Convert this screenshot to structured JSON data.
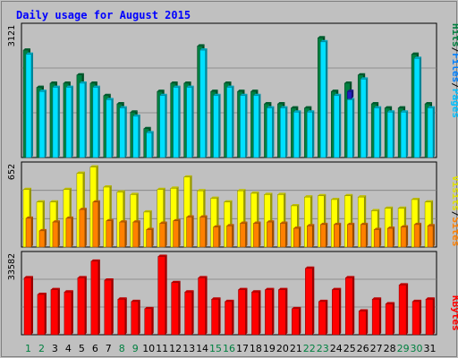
{
  "title": "Daily usage for August 2015",
  "legend": {
    "pages": "Pages",
    "files": "Files",
    "hits": "Hits",
    "sites": "Sites",
    "visits": "Visits",
    "kbytes": "KBytes",
    "separator": "/"
  },
  "colors": {
    "background": "#c0c0c0",
    "plot_bg": "#c0c0c0",
    "title": "#0000ff",
    "hits": "#008040",
    "files": "#00e0ff",
    "pages": "#00c0ff",
    "pages_highlight": "#2020c0",
    "sites": "#ff8000",
    "visits": "#ffff00",
    "kbytes": "#ff0000",
    "weekend_label": "#008040",
    "weekday_label": "#000000",
    "grid": "#808080"
  },
  "chart_data": [
    {
      "type": "bar",
      "name": "hits-files-pages",
      "categories": [
        "1",
        "2",
        "3",
        "4",
        "5",
        "6",
        "7",
        "8",
        "9",
        "10",
        "11",
        "12",
        "13",
        "14",
        "15",
        "16",
        "17",
        "18",
        "19",
        "20",
        "21",
        "22",
        "23",
        "24",
        "25",
        "26",
        "27",
        "28",
        "29",
        "30",
        "31"
      ],
      "ymax_label": "3121",
      "ylim": [
        0,
        3121
      ],
      "series": [
        {
          "name": "Hits",
          "values": [
            2600,
            1700,
            1800,
            1800,
            2000,
            1800,
            1500,
            1300,
            1100,
            700,
            1600,
            1800,
            1800,
            2700,
            1600,
            1800,
            1600,
            1600,
            1300,
            1300,
            1200,
            1200,
            2900,
            1600,
            1800,
            2000,
            1300,
            1200,
            1200,
            2500,
            1300
          ]
        },
        {
          "name": "Files",
          "values": [
            2500,
            1600,
            1700,
            1700,
            1800,
            1700,
            1400,
            1200,
            1000,
            600,
            1500,
            1700,
            1700,
            2600,
            1500,
            1700,
            1500,
            1500,
            1200,
            1200,
            1100,
            1100,
            2800,
            1500,
            1400,
            1900,
            1200,
            1100,
            1100,
            2400,
            1200
          ]
        },
        {
          "name": "Pages",
          "values": [
            0,
            0,
            0,
            0,
            0,
            0,
            0,
            0,
            0,
            0,
            0,
            0,
            0,
            0,
            0,
            0,
            0,
            0,
            0,
            0,
            0,
            0,
            0,
            0,
            1600,
            0,
            0,
            0,
            0,
            0,
            0
          ]
        }
      ]
    },
    {
      "type": "bar",
      "name": "visits-sites",
      "categories": [
        "1",
        "2",
        "3",
        "4",
        "5",
        "6",
        "7",
        "8",
        "9",
        "10",
        "11",
        "12",
        "13",
        "14",
        "15",
        "16",
        "17",
        "18",
        "19",
        "20",
        "21",
        "22",
        "23",
        "24",
        "25",
        "26",
        "27",
        "28",
        "29",
        "30",
        "31"
      ],
      "ymax_label": "652",
      "ylim": [
        0,
        652
      ],
      "series": [
        {
          "name": "Visits",
          "values": [
            460,
            360,
            360,
            460,
            590,
            640,
            480,
            440,
            420,
            280,
            460,
            470,
            560,
            450,
            390,
            360,
            450,
            430,
            420,
            420,
            330,
            400,
            410,
            380,
            410,
            400,
            290,
            310,
            310,
            380,
            360
          ]
        },
        {
          "name": "Sites",
          "values": [
            230,
            130,
            200,
            230,
            300,
            360,
            210,
            200,
            200,
            140,
            190,
            210,
            240,
            240,
            160,
            170,
            190,
            190,
            200,
            190,
            150,
            170,
            180,
            180,
            180,
            180,
            140,
            150,
            160,
            180,
            170
          ]
        }
      ]
    },
    {
      "type": "bar",
      "name": "kbytes",
      "categories": [
        "1",
        "2",
        "3",
        "4",
        "5",
        "6",
        "7",
        "8",
        "9",
        "10",
        "11",
        "12",
        "13",
        "14",
        "15",
        "16",
        "17",
        "18",
        "19",
        "20",
        "21",
        "22",
        "23",
        "24",
        "25",
        "26",
        "27",
        "28",
        "29",
        "30",
        "31"
      ],
      "ymax_label": "33582",
      "ylim": [
        0,
        33582
      ],
      "series": [
        {
          "name": "KBytes",
          "values": [
            24000,
            17000,
            19000,
            18000,
            24000,
            31000,
            23000,
            15000,
            14000,
            11000,
            33000,
            22000,
            18000,
            24000,
            15000,
            14000,
            19000,
            18000,
            19000,
            19000,
            11000,
            28000,
            14000,
            19000,
            24000,
            10000,
            15000,
            13000,
            21000,
            14000,
            15000
          ]
        }
      ]
    }
  ],
  "weekends": [
    "1",
    "2",
    "8",
    "9",
    "15",
    "16",
    "22",
    "23",
    "29",
    "30"
  ]
}
